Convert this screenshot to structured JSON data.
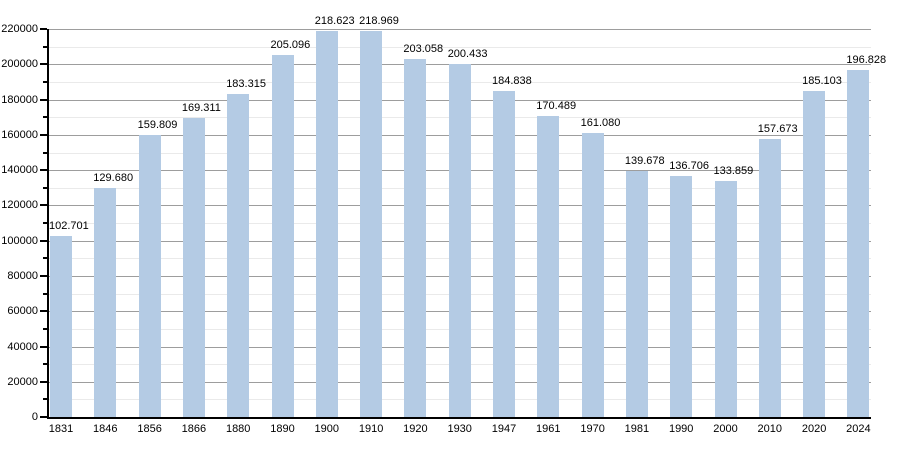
{
  "chart_data": {
    "type": "bar",
    "title": "",
    "xlabel": "",
    "ylabel": "",
    "categories": [
      "1831",
      "1846",
      "1856",
      "1866",
      "1880",
      "1890",
      "1900",
      "1910",
      "1920",
      "1930",
      "1947",
      "1961",
      "1970",
      "1981",
      "1990",
      "2000",
      "2010",
      "2020",
      "2024"
    ],
    "values": [
      102701,
      129680,
      159809,
      169311,
      183315,
      205096,
      218623,
      218969,
      203058,
      200433,
      184838,
      170489,
      161080,
      139678,
      136706,
      133859,
      157673,
      185103,
      196828
    ],
    "value_labels": [
      "102.701",
      "129.680",
      "159.809",
      "169.311",
      "183.315",
      "205.096",
      "218.623",
      "218.969",
      "203.058",
      "200.433",
      "184.838",
      "170.489",
      "161.080",
      "139.678",
      "136.706",
      "133.859",
      "157.673",
      "185.103",
      "196.828"
    ],
    "ylim": [
      0,
      220000
    ],
    "y_major_step": 20000,
    "y_minor_step": 10000,
    "y_tick_labels": [
      "0",
      "20000",
      "40000",
      "60000",
      "80000",
      "100000",
      "120000",
      "140000",
      "160000",
      "180000",
      "200000",
      "220000"
    ],
    "grid": "on",
    "legend": "none",
    "colors": {
      "bar_fill": "#b4cbe4",
      "grid_major": "#9d9d9d",
      "grid_minor": "#eaeaea",
      "axis": "#000000",
      "text": "#000000",
      "background": "#ffffff"
    }
  }
}
